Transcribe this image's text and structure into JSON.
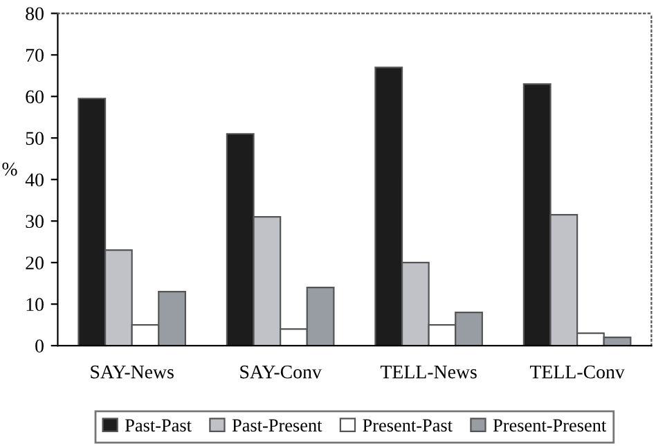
{
  "chart_data": {
    "type": "bar",
    "ylabel": "%",
    "categories": [
      "SAY-News",
      "SAY-Conv",
      "TELL-News",
      "TELL-Conv"
    ],
    "series": [
      {
        "name": "Past-Past",
        "color": "#1c1c1c",
        "values": [
          59.5,
          51,
          67,
          63
        ]
      },
      {
        "name": "Past-Present",
        "color": "#c0c2c8",
        "values": [
          23,
          31,
          20,
          31.5
        ]
      },
      {
        "name": "Present-Past",
        "color": "#ffffff",
        "values": [
          5,
          4,
          5,
          3
        ]
      },
      {
        "name": "Present-Present",
        "color": "#989ca3",
        "values": [
          13,
          14,
          8,
          2
        ]
      }
    ],
    "ylim": [
      0,
      80
    ],
    "yticks": [
      0,
      10,
      20,
      30,
      40,
      50,
      60,
      70,
      80
    ],
    "grid": false,
    "legend": "bottom"
  }
}
